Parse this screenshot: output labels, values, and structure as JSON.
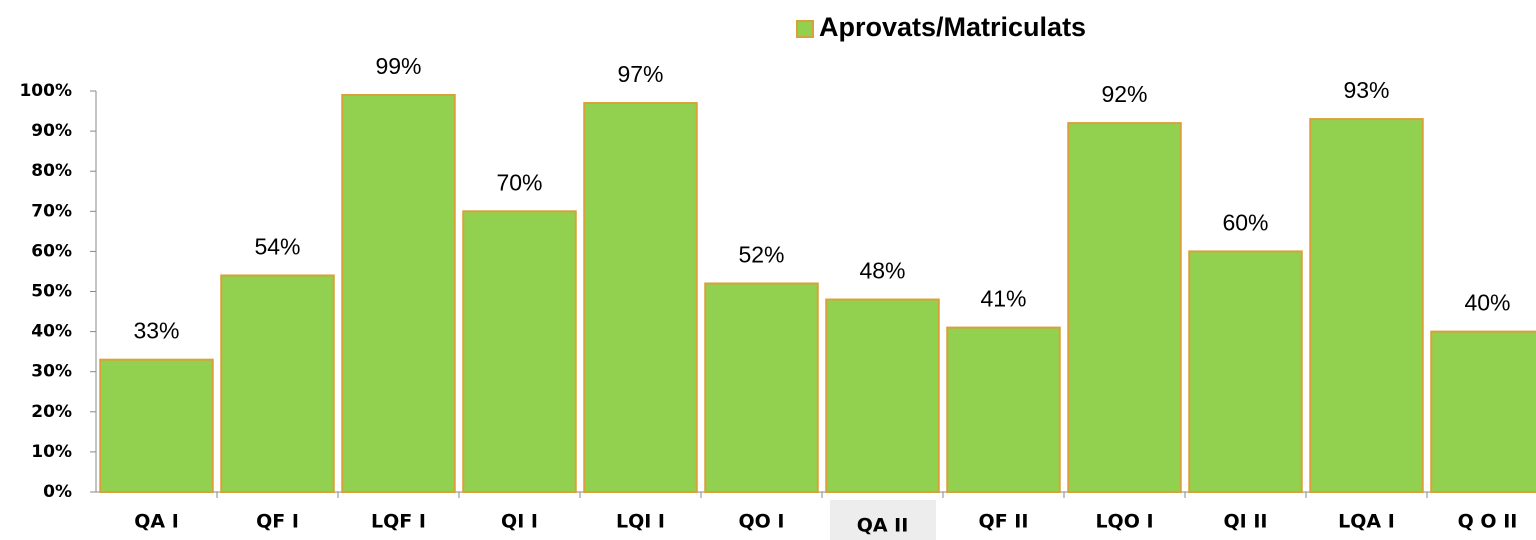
{
  "chart_data": {
    "type": "bar",
    "categories": [
      "QA I",
      "QF I",
      "LQF I",
      "QI I",
      "LQI I",
      "QO I",
      "QA II",
      "QF II",
      "LQO I",
      "QI II",
      "LQA I",
      "Q O II"
    ],
    "series": [
      {
        "name": "Aprovats/Matriculats",
        "color": "#92d050",
        "values": [
          33,
          54,
          99,
          70,
          97,
          52,
          48,
          41,
          92,
          60,
          93,
          40
        ],
        "value_labels": [
          "33%",
          "54%",
          "99%",
          "70%",
          "97%",
          "52%",
          "48%",
          "41%",
          "92%",
          "60%",
          "93%",
          "40%"
        ]
      }
    ],
    "ylim": [
      0,
      100
    ],
    "yticks": [
      {
        "value": 0,
        "label": "0%"
      },
      {
        "value": 10,
        "label": "10%"
      },
      {
        "value": 20,
        "label": "20%"
      },
      {
        "value": 30,
        "label": "30%"
      },
      {
        "value": 40,
        "label": "40%"
      },
      {
        "value": 50,
        "label": "50%"
      },
      {
        "value": 60,
        "label": "60%"
      },
      {
        "value": 70,
        "label": "70%"
      },
      {
        "value": 80,
        "label": "80%"
      },
      {
        "value": 90,
        "label": "90%"
      },
      {
        "value": 100,
        "label": "100%"
      }
    ],
    "legend": "top"
  }
}
